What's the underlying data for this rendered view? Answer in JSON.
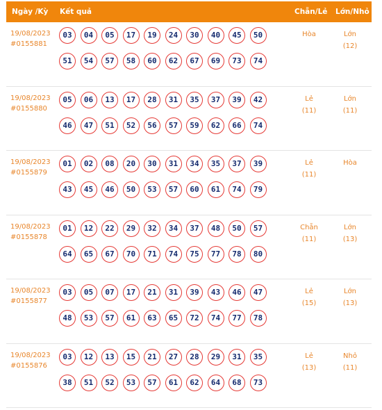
{
  "header": {
    "date_col": "Ngày /Kỳ",
    "result_col": "Kết quả",
    "even_odd_col": "Chẵn/Lẻ",
    "big_small_col": "Lớn/Nhỏ"
  },
  "rows": [
    {
      "date": "19/08/2023",
      "draw": "#0155881",
      "numbers": [
        "03",
        "04",
        "05",
        "17",
        "19",
        "24",
        "30",
        "40",
        "45",
        "50",
        "51",
        "54",
        "57",
        "58",
        "60",
        "62",
        "67",
        "69",
        "73",
        "74"
      ],
      "even_odd": "Hòa",
      "even_odd_count": "",
      "big_small": "Lớn",
      "big_small_count": "(12)"
    },
    {
      "date": "19/08/2023",
      "draw": "#0155880",
      "numbers": [
        "05",
        "06",
        "13",
        "17",
        "28",
        "31",
        "35",
        "37",
        "39",
        "42",
        "46",
        "47",
        "51",
        "52",
        "56",
        "57",
        "59",
        "62",
        "66",
        "74"
      ],
      "even_odd": "Lẻ",
      "even_odd_count": "(11)",
      "big_small": "Lớn",
      "big_small_count": "(11)"
    },
    {
      "date": "19/08/2023",
      "draw": "#0155879",
      "numbers": [
        "01",
        "02",
        "08",
        "20",
        "30",
        "31",
        "34",
        "35",
        "37",
        "39",
        "43",
        "45",
        "46",
        "50",
        "53",
        "57",
        "60",
        "61",
        "74",
        "79"
      ],
      "even_odd": "Lẻ",
      "even_odd_count": "(11)",
      "big_small": "Hòa",
      "big_small_count": ""
    },
    {
      "date": "19/08/2023",
      "draw": "#0155878",
      "numbers": [
        "01",
        "12",
        "22",
        "29",
        "32",
        "34",
        "37",
        "48",
        "50",
        "57",
        "64",
        "65",
        "67",
        "70",
        "71",
        "74",
        "75",
        "77",
        "78",
        "80"
      ],
      "even_odd": "Chẵn",
      "even_odd_count": "(11)",
      "big_small": "Lớn",
      "big_small_count": "(13)"
    },
    {
      "date": "19/08/2023",
      "draw": "#0155877",
      "numbers": [
        "03",
        "05",
        "07",
        "17",
        "21",
        "31",
        "39",
        "43",
        "46",
        "47",
        "48",
        "53",
        "57",
        "61",
        "63",
        "65",
        "72",
        "74",
        "77",
        "78"
      ],
      "even_odd": "Lẻ",
      "even_odd_count": "(15)",
      "big_small": "Lớn",
      "big_small_count": "(13)"
    },
    {
      "date": "19/08/2023",
      "draw": "#0155876",
      "numbers": [
        "03",
        "12",
        "13",
        "15",
        "21",
        "27",
        "28",
        "29",
        "31",
        "35",
        "38",
        "51",
        "52",
        "53",
        "57",
        "61",
        "62",
        "64",
        "68",
        "73"
      ],
      "even_odd": "Lẻ",
      "even_odd_count": "(13)",
      "big_small": "Nhỏ",
      "big_small_count": "(11)"
    }
  ],
  "colors": {
    "header_bg": "#f0860c",
    "accent_text": "#e8862b",
    "ball_border": "#e53935",
    "ball_text": "#142a6e"
  }
}
